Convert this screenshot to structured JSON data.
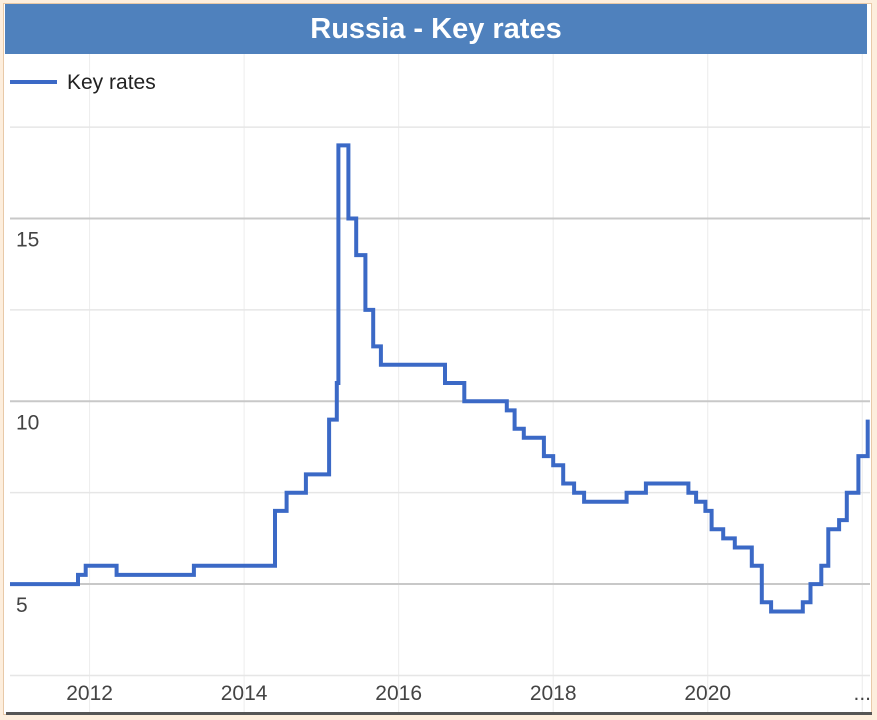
{
  "chart_data": {
    "type": "line",
    "title": "Russia - Key rates",
    "legend": {
      "label": "Key rates",
      "placement": "top-left",
      "color": "#3b69c6"
    },
    "x_tick_labels": [
      "2012",
      "2014",
      "2016",
      "2018",
      "2020",
      "..."
    ],
    "x_ticks": [
      2012,
      2014,
      2016,
      2018,
      2020,
      2022
    ],
    "y_tick_labels": [
      "5",
      "10",
      "15"
    ],
    "y_ticks": [
      5,
      10,
      15
    ],
    "xlim": [
      2010.97,
      2022.1
    ],
    "ylim": [
      1.5,
      19.5
    ],
    "grid": true,
    "gridlines_major": [
      5,
      10,
      15
    ],
    "gridlines_minor": [
      2.5,
      7.5,
      12.5,
      17.5
    ],
    "series": [
      {
        "name": "Key rates",
        "color": "#3b69c6",
        "step": true,
        "points": [
          [
            2010.97,
            5.0
          ],
          [
            2011.85,
            5.25
          ],
          [
            2011.95,
            5.5
          ],
          [
            2012.35,
            5.25
          ],
          [
            2013.35,
            5.5
          ],
          [
            2014.4,
            7.0
          ],
          [
            2014.55,
            7.5
          ],
          [
            2014.8,
            8.0
          ],
          [
            2015.1,
            9.5
          ],
          [
            2015.2,
            10.5
          ],
          [
            2015.22,
            17.0
          ],
          [
            2015.35,
            15.0
          ],
          [
            2015.45,
            14.0
          ],
          [
            2015.57,
            12.5
          ],
          [
            2015.67,
            11.5
          ],
          [
            2015.77,
            11.0
          ],
          [
            2016.6,
            10.5
          ],
          [
            2016.85,
            10.0
          ],
          [
            2017.4,
            9.75
          ],
          [
            2017.5,
            9.25
          ],
          [
            2017.62,
            9.0
          ],
          [
            2017.88,
            8.5
          ],
          [
            2018.0,
            8.25
          ],
          [
            2018.13,
            7.75
          ],
          [
            2018.27,
            7.5
          ],
          [
            2018.4,
            7.25
          ],
          [
            2018.95,
            7.5
          ],
          [
            2019.2,
            7.75
          ],
          [
            2019.75,
            7.5
          ],
          [
            2019.85,
            7.25
          ],
          [
            2019.97,
            7.0
          ],
          [
            2020.05,
            6.5
          ],
          [
            2020.2,
            6.25
          ],
          [
            2020.35,
            6.0
          ],
          [
            2020.57,
            5.5
          ],
          [
            2020.7,
            4.5
          ],
          [
            2020.82,
            4.25
          ],
          [
            2021.23,
            4.5
          ],
          [
            2021.33,
            5.0
          ],
          [
            2021.47,
            5.5
          ],
          [
            2021.56,
            6.5
          ],
          [
            2021.7,
            6.75
          ],
          [
            2021.8,
            7.5
          ],
          [
            2021.95,
            8.5
          ],
          [
            2022.07,
            9.5
          ]
        ]
      }
    ]
  }
}
